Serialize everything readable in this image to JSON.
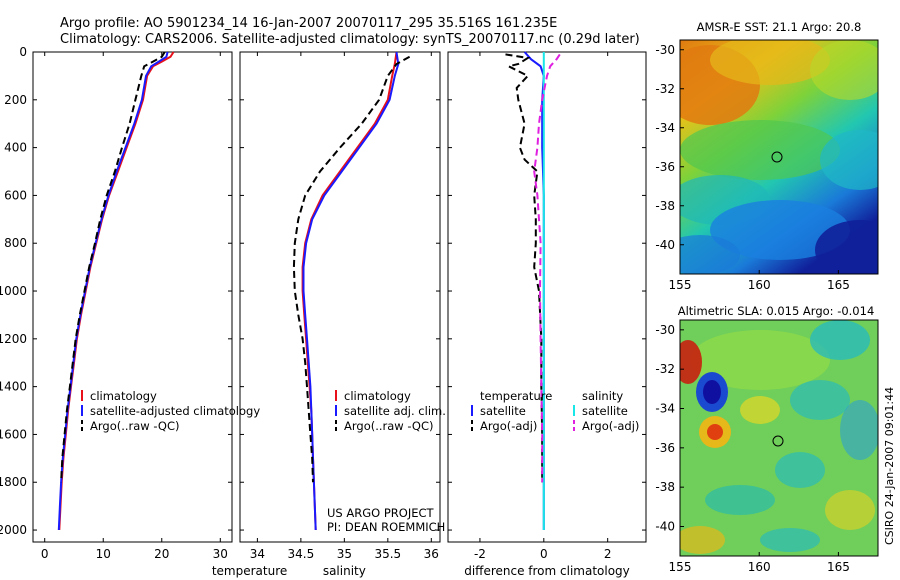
{
  "title_line1": "Argo profile: AO 5901234_14 16-Jan-2007 20070117_295 35.516S 161.235E",
  "title_line2": "Climatology: CARS2006. Satellite-adjusted climatology: synTS_20070117.nc (0.29d later)",
  "side_text": "CSIRO 24-Jan-2007 09:01:44",
  "project_line1": "US ARGO PROJECT",
  "project_line2": "PI: DEAN ROEMMICH",
  "colors": {
    "red": "#e8111b",
    "blue": "#1a1aff",
    "black": "#000000",
    "magenta": "#e020e0",
    "cyan": "#19e6e6"
  },
  "chart_data": [
    {
      "type": "line",
      "name": "temperature-panel",
      "xlabel": "temperature",
      "xlim": [
        -2,
        32
      ],
      "ylim": [
        2050,
        0
      ],
      "xticks": [
        0,
        10,
        20,
        30
      ],
      "yticks": [
        0,
        200,
        400,
        600,
        800,
        1000,
        1200,
        1400,
        1600,
        1800,
        2000
      ],
      "legend": [
        "climatology",
        "satellite-adjusted climatology",
        "Argo(..raw -QC)"
      ],
      "series": [
        {
          "name": "climatology",
          "style": "solid",
          "color": "red",
          "points": [
            [
              22,
              0
            ],
            [
              21.5,
              20
            ],
            [
              20,
              40
            ],
            [
              18.5,
              60
            ],
            [
              17.5,
              100
            ],
            [
              16.8,
              200
            ],
            [
              15.5,
              300
            ],
            [
              14,
              400
            ],
            [
              12.5,
              500
            ],
            [
              11,
              600
            ],
            [
              9.8,
              700
            ],
            [
              8.8,
              800
            ],
            [
              7.8,
              900
            ],
            [
              7,
              1000
            ],
            [
              6.2,
              1100
            ],
            [
              5.5,
              1200
            ],
            [
              5,
              1300
            ],
            [
              4.5,
              1400
            ],
            [
              4,
              1500
            ],
            [
              3.6,
              1600
            ],
            [
              3.2,
              1700
            ],
            [
              2.9,
              1800
            ],
            [
              2.7,
              1900
            ],
            [
              2.5,
              2000
            ]
          ]
        },
        {
          "name": "satellite-adjusted climatology",
          "style": "solid",
          "color": "blue",
          "points": [
            [
              21,
              0
            ],
            [
              20.8,
              20
            ],
            [
              19.5,
              40
            ],
            [
              18.2,
              60
            ],
            [
              17.3,
              100
            ],
            [
              16.6,
              200
            ],
            [
              15.3,
              300
            ],
            [
              13.8,
              400
            ],
            [
              12.3,
              500
            ],
            [
              10.9,
              600
            ],
            [
              9.7,
              700
            ],
            [
              8.7,
              800
            ],
            [
              7.7,
              900
            ],
            [
              6.9,
              1000
            ],
            [
              6.1,
              1100
            ],
            [
              5.4,
              1200
            ],
            [
              4.9,
              1300
            ],
            [
              4.4,
              1400
            ],
            [
              3.9,
              1500
            ],
            [
              3.5,
              1600
            ],
            [
              3.1,
              1700
            ],
            [
              2.8,
              1800
            ],
            [
              2.6,
              1900
            ],
            [
              2.4,
              2000
            ]
          ]
        },
        {
          "name": "Argo(..raw -QC)",
          "style": "dashed",
          "color": "black",
          "points": [
            [
              20.5,
              0
            ],
            [
              20,
              20
            ],
            [
              18.5,
              40
            ],
            [
              17,
              60
            ],
            [
              16.5,
              100
            ],
            [
              15.5,
              200
            ],
            [
              14.5,
              300
            ],
            [
              13.2,
              400
            ],
            [
              12,
              500
            ],
            [
              10.6,
              600
            ],
            [
              9.5,
              700
            ],
            [
              8.6,
              800
            ],
            [
              7.6,
              900
            ],
            [
              6.8,
              1000
            ],
            [
              6,
              1100
            ],
            [
              5.3,
              1200
            ],
            [
              4.8,
              1300
            ],
            [
              4.3,
              1400
            ],
            [
              3.8,
              1500
            ],
            [
              3.4,
              1600
            ],
            [
              3,
              1700
            ],
            [
              2.8,
              1800
            ]
          ]
        }
      ]
    },
    {
      "type": "line",
      "name": "salinity-panel",
      "xlabel": "salinity",
      "xlim": [
        33.8,
        36.1
      ],
      "ylim": [
        2050,
        0
      ],
      "xticks": [
        34,
        34.5,
        35,
        35.5,
        36
      ],
      "legend": [
        "climatology",
        "satellite adj. clim.",
        "Argo(..raw -QC)"
      ],
      "series": [
        {
          "name": "climatology",
          "style": "solid",
          "color": "red",
          "points": [
            [
              35.6,
              0
            ],
            [
              35.58,
              50
            ],
            [
              35.55,
              100
            ],
            [
              35.5,
              200
            ],
            [
              35.35,
              300
            ],
            [
              35.15,
              400
            ],
            [
              34.95,
              500
            ],
            [
              34.75,
              600
            ],
            [
              34.62,
              700
            ],
            [
              34.55,
              800
            ],
            [
              34.52,
              900
            ],
            [
              34.52,
              1000
            ],
            [
              34.54,
              1100
            ],
            [
              34.56,
              1200
            ],
            [
              34.58,
              1300
            ],
            [
              34.6,
              1400
            ],
            [
              34.62,
              1500
            ],
            [
              34.63,
              1600
            ],
            [
              34.64,
              1700
            ],
            [
              34.65,
              1800
            ],
            [
              34.66,
              1900
            ],
            [
              34.67,
              2000
            ]
          ]
        },
        {
          "name": "satellite adj. clim.",
          "style": "solid",
          "color": "blue",
          "points": [
            [
              35.6,
              0
            ],
            [
              35.62,
              50
            ],
            [
              35.58,
              100
            ],
            [
              35.52,
              200
            ],
            [
              35.37,
              300
            ],
            [
              35.17,
              400
            ],
            [
              34.97,
              500
            ],
            [
              34.77,
              600
            ],
            [
              34.63,
              700
            ],
            [
              34.56,
              800
            ],
            [
              34.53,
              900
            ],
            [
              34.53,
              1000
            ],
            [
              34.55,
              1100
            ],
            [
              34.57,
              1200
            ],
            [
              34.59,
              1300
            ],
            [
              34.61,
              1400
            ],
            [
              34.62,
              1500
            ],
            [
              34.63,
              1600
            ],
            [
              34.64,
              1700
            ],
            [
              34.65,
              1800
            ],
            [
              34.66,
              1900
            ],
            [
              34.67,
              2000
            ]
          ]
        },
        {
          "name": "Argo(..raw -QC)",
          "style": "dashed",
          "color": "black",
          "points": [
            [
              35.75,
              20
            ],
            [
              35.6,
              50
            ],
            [
              35.5,
              100
            ],
            [
              35.4,
              200
            ],
            [
              35.2,
              300
            ],
            [
              34.95,
              400
            ],
            [
              34.72,
              500
            ],
            [
              34.55,
              600
            ],
            [
              34.47,
              700
            ],
            [
              34.43,
              800
            ],
            [
              34.42,
              900
            ],
            [
              34.43,
              1000
            ],
            [
              34.47,
              1100
            ],
            [
              34.52,
              1200
            ],
            [
              34.55,
              1300
            ],
            [
              34.57,
              1400
            ],
            [
              34.59,
              1500
            ],
            [
              34.61,
              1600
            ],
            [
              34.63,
              1700
            ],
            [
              34.64,
              1800
            ]
          ]
        }
      ]
    },
    {
      "type": "line",
      "name": "difference-panel",
      "xlabel": "difference from climatology",
      "xlim": [
        -3,
        3.2
      ],
      "ylim": [
        2050,
        0
      ],
      "xticks": [
        -2,
        0,
        2
      ],
      "legend_left_title": "temperature",
      "legend_right_title": "salinity",
      "legend_left": [
        "satellite",
        "Argo(-adj)"
      ],
      "legend_right": [
        "satellite",
        "Argo(-adj)"
      ],
      "series": [
        {
          "name": "temperature satellite",
          "style": "solid",
          "color": "blue",
          "points": [
            [
              -0.6,
              0
            ],
            [
              -0.4,
              30
            ],
            [
              -0.1,
              60
            ],
            [
              0,
              100
            ],
            [
              -0.05,
              200
            ],
            [
              -0.05,
              400
            ],
            [
              0,
              600
            ],
            [
              0,
              1000
            ],
            [
              0,
              1400
            ],
            [
              0,
              2000
            ]
          ]
        },
        {
          "name": "temperature Argo(-adj)",
          "style": "dashed",
          "color": "black",
          "points": [
            [
              -1.2,
              10
            ],
            [
              -0.5,
              25
            ],
            [
              -0.8,
              50
            ],
            [
              -1.1,
              60
            ],
            [
              -0.5,
              100
            ],
            [
              -0.85,
              150
            ],
            [
              -0.8,
              200
            ],
            [
              -0.6,
              300
            ],
            [
              -0.75,
              400
            ],
            [
              -0.6,
              450
            ],
            [
              -0.2,
              500
            ],
            [
              -0.3,
              600
            ],
            [
              -0.25,
              700
            ],
            [
              -0.25,
              800
            ],
            [
              -0.3,
              900
            ],
            [
              -0.15,
              1000
            ],
            [
              -0.08,
              1200
            ],
            [
              -0.08,
              1400
            ],
            [
              -0.05,
              1600
            ],
            [
              -0.05,
              1800
            ]
          ]
        },
        {
          "name": "salinity satellite",
          "style": "solid",
          "color": "cyan",
          "points": [
            [
              0,
              0
            ],
            [
              0,
              500
            ],
            [
              0,
              1000
            ],
            [
              0,
              1500
            ],
            [
              0,
              2000
            ]
          ]
        },
        {
          "name": "salinity Argo(-adj)",
          "style": "dashed",
          "color": "magenta",
          "points": [
            [
              0.5,
              10
            ],
            [
              0.4,
              30
            ],
            [
              0.2,
              60
            ],
            [
              0.1,
              100
            ],
            [
              -0.05,
              200
            ],
            [
              -0.15,
              300
            ],
            [
              -0.2,
              400
            ],
            [
              -0.3,
              500
            ],
            [
              -0.2,
              600
            ],
            [
              -0.15,
              700
            ],
            [
              -0.1,
              800
            ],
            [
              -0.12,
              1000
            ],
            [
              -0.1,
              1200
            ],
            [
              -0.08,
              1400
            ],
            [
              -0.05,
              1600
            ],
            [
              -0.05,
              1800
            ]
          ]
        }
      ]
    },
    {
      "type": "heatmap",
      "name": "sst-map",
      "title": "AMSR-E SST: 21.1  Argo: 20.8",
      "xlim": [
        155,
        167.5
      ],
      "ylim": [
        -41.5,
        -29.5
      ],
      "xticks": [
        155,
        160,
        165
      ],
      "yticks": [
        -30,
        -32,
        -34,
        -36,
        -38,
        -40
      ],
      "marker": [
        161.2,
        -35.5
      ]
    },
    {
      "type": "heatmap",
      "name": "sla-map",
      "title": "Altimetric SLA: 0.015  Argo: -0.014",
      "xlim": [
        155,
        167.5
      ],
      "ylim": [
        -41.5,
        -29.5
      ],
      "xticks": [
        155,
        160,
        165
      ],
      "yticks": [
        -30,
        -32,
        -34,
        -36,
        -38,
        -40
      ],
      "marker": [
        161.2,
        -35.5
      ]
    }
  ]
}
